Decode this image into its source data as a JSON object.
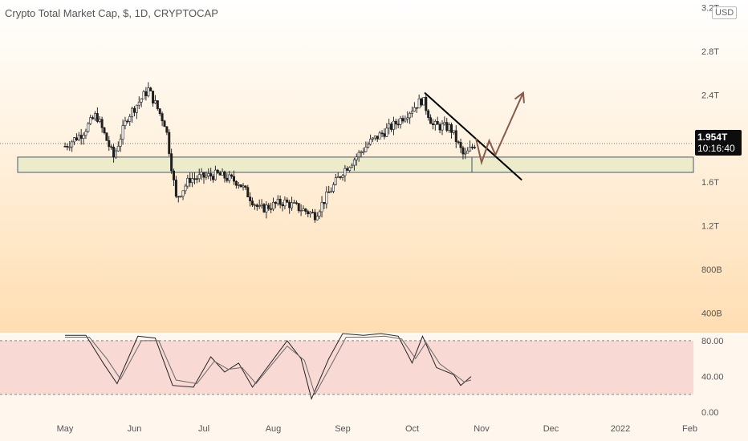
{
  "header": {
    "title": "Crypto Total Market Cap, $, 1D, CRYPTOCAP",
    "currency_button": "USD"
  },
  "price_label": {
    "value": "1.954T",
    "time": "10:16:40"
  },
  "chart_data": [
    {
      "type": "candlestick",
      "title": "Crypto Total Market Cap, $, 1D, CRYPTOCAP",
      "y_ticks": [
        "3.2T",
        "2.8T",
        "2.4T",
        "1.6T",
        "1.2T",
        "800B",
        "400B"
      ],
      "y_tick_values": [
        3.2,
        2.8,
        2.4,
        1.6,
        1.2,
        0.8,
        0.4
      ],
      "y_unit": "T",
      "x_ticks": [
        "May",
        "Jun",
        "Jul",
        "Aug",
        "Sep",
        "Oct",
        "Nov",
        "Dec",
        "2022",
        "Feb"
      ],
      "ylim": [
        0.22,
        3.27
      ],
      "last_price": 1.954,
      "support_zone": [
        1.69,
        1.83
      ],
      "close_path": [
        {
          "x": 0.0,
          "y": 1.93
        },
        {
          "x": 0.25,
          "y": 2.05
        },
        {
          "x": 0.45,
          "y": 2.22
        },
        {
          "x": 0.7,
          "y": 1.83
        },
        {
          "x": 0.9,
          "y": 2.2
        },
        {
          "x": 1.2,
          "y": 2.45
        },
        {
          "x": 1.45,
          "y": 2.12
        },
        {
          "x": 1.6,
          "y": 1.45
        },
        {
          "x": 1.8,
          "y": 1.63
        },
        {
          "x": 2.2,
          "y": 1.67
        },
        {
          "x": 2.5,
          "y": 1.6
        },
        {
          "x": 2.8,
          "y": 1.35
        },
        {
          "x": 3.15,
          "y": 1.42
        },
        {
          "x": 3.6,
          "y": 1.3
        },
        {
          "x": 4.0,
          "y": 1.7
        },
        {
          "x": 4.4,
          "y": 1.97
        },
        {
          "x": 4.75,
          "y": 2.13
        },
        {
          "x": 5.15,
          "y": 2.36
        },
        {
          "x": 5.3,
          "y": 2.12
        },
        {
          "x": 5.55,
          "y": 2.1
        },
        {
          "x": 5.75,
          "y": 1.83
        },
        {
          "x": 5.9,
          "y": 1.95
        }
      ],
      "trendline": [
        {
          "x": 5.18,
          "y": 2.42
        },
        {
          "x": 6.58,
          "y": 1.62
        }
      ],
      "projection": [
        {
          "x": 5.92,
          "y": 2.0
        },
        {
          "x": 6.0,
          "y": 1.78
        },
        {
          "x": 6.11,
          "y": 1.98
        },
        {
          "x": 6.2,
          "y": 1.85
        },
        {
          "x": 6.6,
          "y": 2.42
        }
      ]
    },
    {
      "type": "line",
      "title": "",
      "y_ticks": [
        "80.00",
        "40.00",
        "0.00"
      ],
      "y_tick_values": [
        80,
        40,
        0
      ],
      "ylim": [
        -7,
        88
      ],
      "band": [
        20,
        80
      ],
      "series": [
        {
          "values": [
            {
              "x": 0.0,
              "y": 86
            },
            {
              "x": 0.3,
              "y": 86
            },
            {
              "x": 0.55,
              "y": 55
            },
            {
              "x": 0.75,
              "y": 32
            },
            {
              "x": 1.05,
              "y": 85
            },
            {
              "x": 1.3,
              "y": 83
            },
            {
              "x": 1.55,
              "y": 30
            },
            {
              "x": 1.85,
              "y": 28
            },
            {
              "x": 2.1,
              "y": 62
            },
            {
              "x": 2.3,
              "y": 45
            },
            {
              "x": 2.5,
              "y": 55
            },
            {
              "x": 2.7,
              "y": 28
            },
            {
              "x": 3.2,
              "y": 80
            },
            {
              "x": 3.4,
              "y": 60
            },
            {
              "x": 3.55,
              "y": 15
            },
            {
              "x": 3.8,
              "y": 60
            },
            {
              "x": 4.0,
              "y": 88
            },
            {
              "x": 4.3,
              "y": 86
            },
            {
              "x": 4.55,
              "y": 88
            },
            {
              "x": 4.8,
              "y": 85
            },
            {
              "x": 5.0,
              "y": 55
            },
            {
              "x": 5.15,
              "y": 85
            },
            {
              "x": 5.35,
              "y": 50
            },
            {
              "x": 5.6,
              "y": 42
            },
            {
              "x": 5.7,
              "y": 30
            },
            {
              "x": 5.85,
              "y": 40
            }
          ]
        },
        {
          "values": [
            {
              "x": 0.0,
              "y": 84
            },
            {
              "x": 0.35,
              "y": 84
            },
            {
              "x": 0.6,
              "y": 60
            },
            {
              "x": 0.8,
              "y": 37
            },
            {
              "x": 1.1,
              "y": 80
            },
            {
              "x": 1.35,
              "y": 80
            },
            {
              "x": 1.6,
              "y": 36
            },
            {
              "x": 1.9,
              "y": 32
            },
            {
              "x": 2.15,
              "y": 57
            },
            {
              "x": 2.35,
              "y": 48
            },
            {
              "x": 2.55,
              "y": 50
            },
            {
              "x": 2.75,
              "y": 32
            },
            {
              "x": 3.2,
              "y": 74
            },
            {
              "x": 3.45,
              "y": 58
            },
            {
              "x": 3.6,
              "y": 20
            },
            {
              "x": 3.85,
              "y": 55
            },
            {
              "x": 4.05,
              "y": 84
            },
            {
              "x": 4.35,
              "y": 84
            },
            {
              "x": 4.6,
              "y": 85
            },
            {
              "x": 4.85,
              "y": 82
            },
            {
              "x": 5.05,
              "y": 60
            },
            {
              "x": 5.2,
              "y": 78
            },
            {
              "x": 5.4,
              "y": 54
            },
            {
              "x": 5.65,
              "y": 40
            },
            {
              "x": 5.75,
              "y": 34
            },
            {
              "x": 5.85,
              "y": 36
            }
          ]
        }
      ]
    }
  ],
  "colors": {
    "candle_fill": "#1e1e1e",
    "wick": "#2a2a2a",
    "support_zone_fill": "#ebeccb",
    "support_zone_stroke": "#41506a",
    "trendline": "#000000",
    "projection": "#8a5a4a",
    "stoch_k": "#222222",
    "stoch_d": "#6a6a6a",
    "stoch_band": "#f7d3cf",
    "dotted_line": "#777777",
    "axis_text": "#555555"
  }
}
